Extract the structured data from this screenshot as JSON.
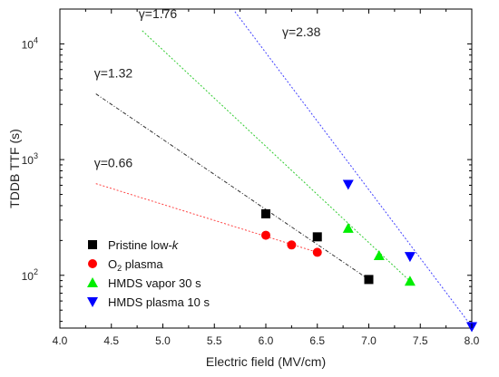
{
  "chart_data": {
    "type": "scatter",
    "xlabel": "Electric field (MV/cm)",
    "ylabel": "TDDB TTF (s)",
    "xlim": [
      4.0,
      8.0
    ],
    "ylim": [
      35,
      20000
    ],
    "yscale": "log",
    "x_ticks": [
      "4.0",
      "4.5",
      "5.0",
      "5.5",
      "6.0",
      "6.5",
      "7.0",
      "7.5",
      "8.0"
    ],
    "y_ticks": [
      {
        "value": 100,
        "base": "10",
        "exp": "2"
      },
      {
        "value": 1000,
        "base": "10",
        "exp": "3"
      },
      {
        "value": 10000,
        "base": "10",
        "exp": "4"
      }
    ],
    "legend_position": "bottom-left",
    "series": [
      {
        "name": "Pristine low-",
        "name_italic": "k",
        "marker": "square",
        "color": "#000000",
        "points": [
          [
            6.0,
            340
          ],
          [
            6.5,
            215
          ],
          [
            7.0,
            92
          ]
        ],
        "fit": [
          [
            4.35,
            3700
          ],
          [
            7.0,
            92
          ]
        ],
        "fit_color": "#333333",
        "gamma_label": "γ=1.32"
      },
      {
        "name": "O",
        "name_sub": "2",
        "name_rest": " plasma",
        "marker": "circle",
        "color": "#ff0000",
        "points": [
          [
            6.0,
            222
          ],
          [
            6.25,
            183
          ],
          [
            6.5,
            158
          ]
        ],
        "fit": [
          [
            4.35,
            620
          ],
          [
            6.5,
            158
          ]
        ],
        "fit_color": "#ff4444",
        "gamma_label": "γ=0.66"
      },
      {
        "name": "HMDS vapor 30 s",
        "marker": "triangle-up",
        "color": "#00ee00",
        "points": [
          [
            6.8,
            255
          ],
          [
            7.1,
            148
          ],
          [
            7.4,
            89
          ]
        ],
        "fit": [
          [
            4.8,
            13000
          ],
          [
            7.4,
            89
          ]
        ],
        "fit_color": "#33cc33",
        "gamma_label": "γ=1.76"
      },
      {
        "name": "HMDS plasma 10 s",
        "marker": "triangle-down",
        "color": "#0000ff",
        "points": [
          [
            6.8,
            610
          ],
          [
            7.4,
            145
          ],
          [
            8.0,
            36
          ]
        ],
        "fit": [
          [
            5.7,
            19000
          ],
          [
            8.0,
            36
          ]
        ],
        "fit_color": "#4444ff",
        "gamma_label": "γ=2.38"
      }
    ]
  }
}
